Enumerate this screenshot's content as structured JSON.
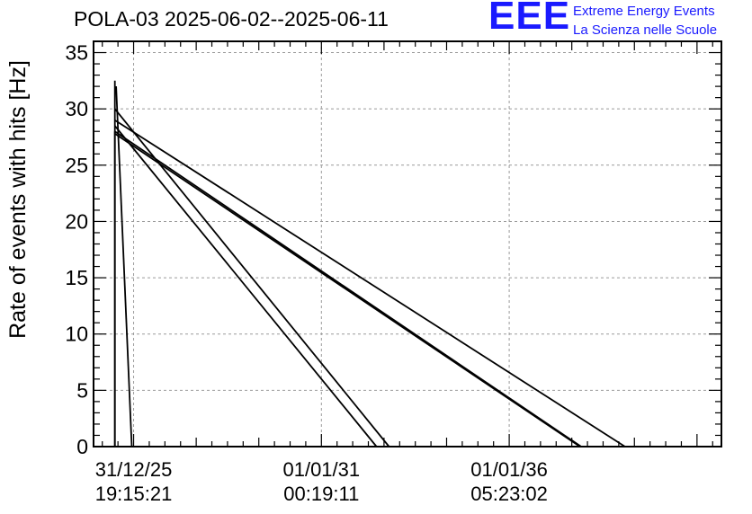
{
  "chart_data": {
    "type": "line",
    "title": "POLA-03 2025-06-02--2025-06-11",
    "ylabel": "Rate of events with hits [Hz]",
    "xlabel": "",
    "ylim": [
      0,
      36
    ],
    "yticks": [
      0,
      5,
      10,
      15,
      20,
      25,
      30,
      35
    ],
    "xlim": [
      -0.64,
      9.39
    ],
    "xtick_positions": [
      0,
      3,
      6
    ],
    "xtick_labels": [
      {
        "date": "31/12/25",
        "time": "19:15:21"
      },
      {
        "date": "01/01/31",
        "time": "00:19:11"
      },
      {
        "date": "01/01/36",
        "time": "05:23:02"
      }
    ],
    "grid": true,
    "segments": [
      {
        "x": [
          -0.3,
          -0.3
        ],
        "y": [
          0,
          32.5
        ]
      },
      {
        "x": [
          -0.3,
          -0.3
        ],
        "y": [
          28.0,
          0
        ]
      },
      {
        "x": [
          -0.28,
          -0.03
        ],
        "y": [
          32.0,
          0
        ]
      },
      {
        "x": [
          -0.3,
          4.08
        ],
        "y": [
          30.0,
          0
        ]
      },
      {
        "x": [
          -0.3,
          3.88
        ],
        "y": [
          28.5,
          0
        ]
      },
      {
        "x": [
          -0.3,
          7.85
        ],
        "y": [
          29.0,
          0
        ]
      },
      {
        "x": [
          -0.3,
          7.15
        ],
        "y": [
          28.0,
          0
        ]
      },
      {
        "x": [
          -0.3,
          7.13
        ],
        "y": [
          27.8,
          0
        ]
      }
    ],
    "line_color": "#000000"
  },
  "logo": {
    "mark": "EEE",
    "line1": "Extreme Energy Events",
    "line2": "La Scienza nelle Scuole",
    "color": "#1a1aff"
  }
}
